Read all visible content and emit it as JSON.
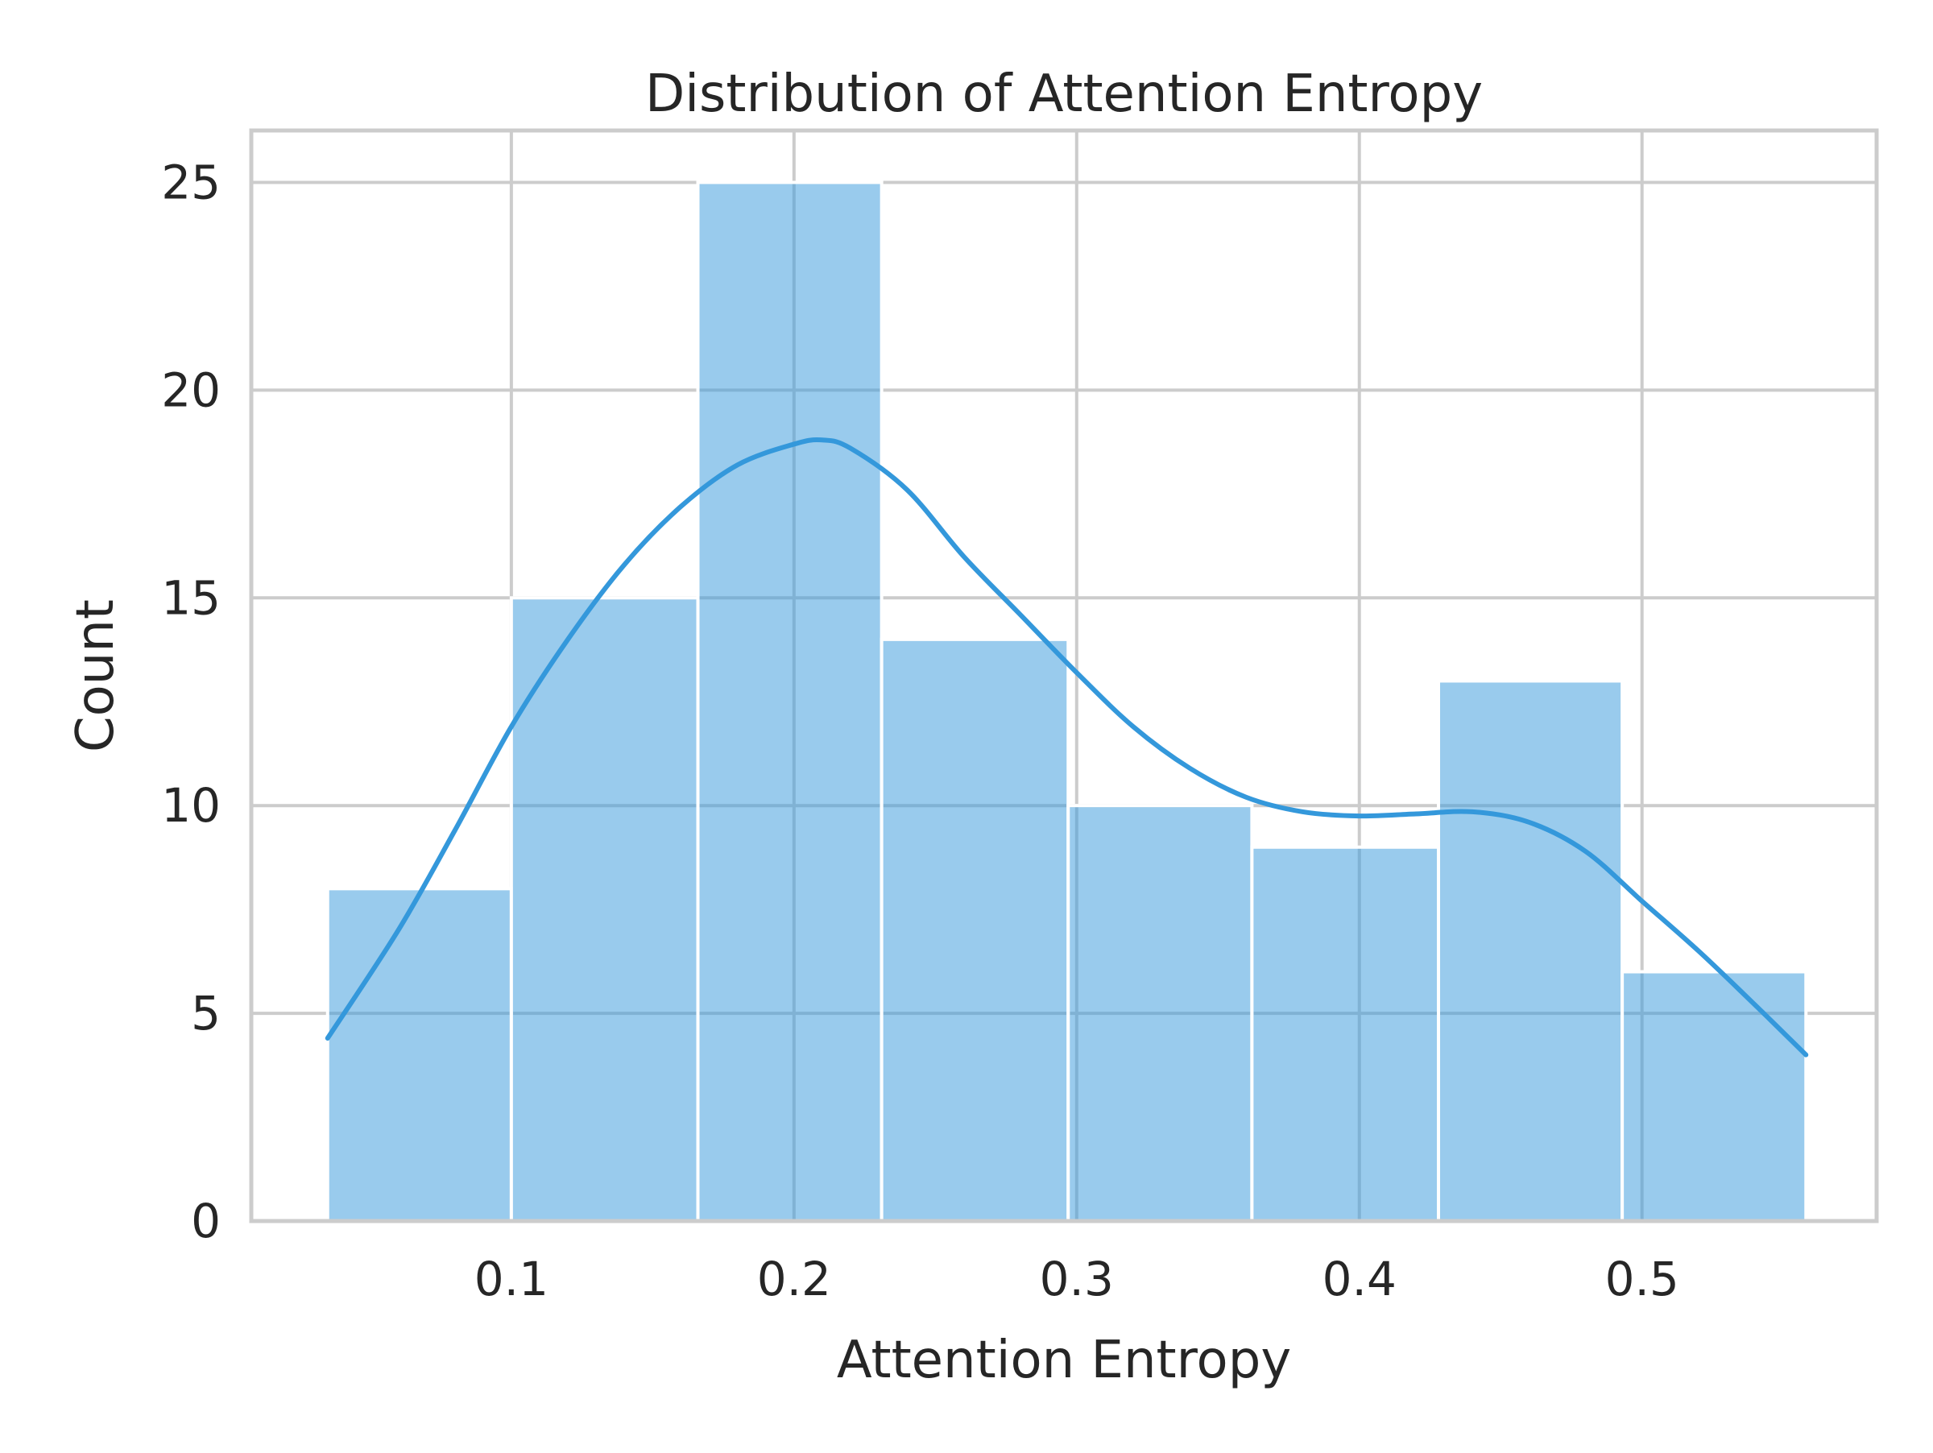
{
  "chart_data": {
    "type": "bar",
    "subtype": "histogram-with-kde",
    "title": "Distribution of Attention Entropy",
    "xlabel": "Attention Entropy",
    "ylabel": "Count",
    "xlim": [
      0.008,
      0.583
    ],
    "ylim": [
      0,
      26.25
    ],
    "xticks": [
      0.1,
      0.2,
      0.3,
      0.4,
      0.5
    ],
    "yticks": [
      0,
      5,
      10,
      15,
      20,
      25
    ],
    "grid": true,
    "color": "#3498db",
    "bins": [
      {
        "x0": 0.035,
        "x1": 0.1,
        "count": 8
      },
      {
        "x0": 0.1,
        "x1": 0.166,
        "count": 15
      },
      {
        "x0": 0.166,
        "x1": 0.231,
        "count": 25
      },
      {
        "x0": 0.231,
        "x1": 0.297,
        "count": 14
      },
      {
        "x0": 0.297,
        "x1": 0.362,
        "count": 10
      },
      {
        "x0": 0.362,
        "x1": 0.428,
        "count": 9
      },
      {
        "x0": 0.428,
        "x1": 0.493,
        "count": 13
      },
      {
        "x0": 0.493,
        "x1": 0.558,
        "count": 6
      }
    ],
    "kde": {
      "x": [
        0.035,
        0.06,
        0.08,
        0.1,
        0.12,
        0.14,
        0.16,
        0.18,
        0.2,
        0.21,
        0.22,
        0.24,
        0.26,
        0.28,
        0.3,
        0.32,
        0.34,
        0.36,
        0.38,
        0.4,
        0.42,
        0.44,
        0.46,
        0.48,
        0.5,
        0.52,
        0.54,
        0.558
      ],
      "y": [
        4.4,
        7.0,
        9.4,
        11.9,
        14.0,
        15.8,
        17.2,
        18.2,
        18.7,
        18.8,
        18.6,
        17.6,
        16.0,
        14.6,
        13.2,
        11.9,
        10.9,
        10.2,
        9.85,
        9.75,
        9.8,
        9.85,
        9.6,
        8.9,
        7.7,
        6.5,
        5.2,
        4.0
      ]
    }
  }
}
